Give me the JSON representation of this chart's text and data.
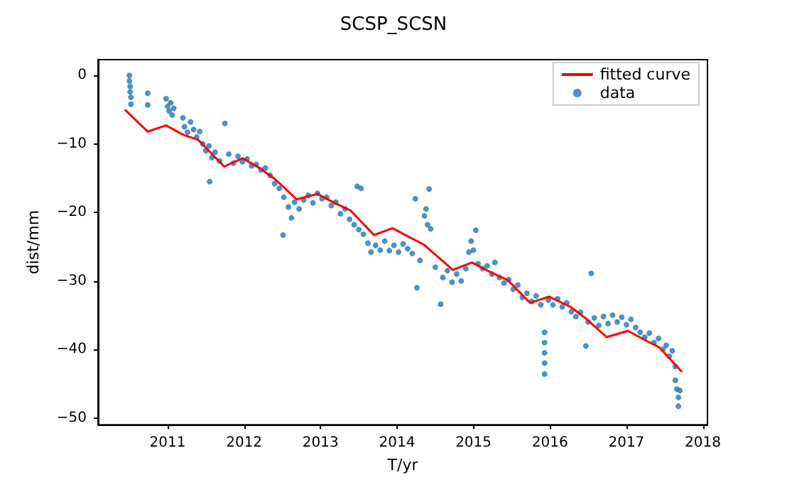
{
  "chart_data": {
    "type": "scatter",
    "title": "SCSP_SCSN",
    "xlabel": "T/yr",
    "ylabel": "dist/mm",
    "xlim": [
      2010.09,
      2018.06
    ],
    "xticks": [
      2011,
      2012,
      2013,
      2014,
      2015,
      2016,
      2017,
      2018
    ],
    "ylim": [
      -51,
      2.3
    ],
    "yticks": [
      -50,
      -40,
      -30,
      -20,
      -10,
      0
    ],
    "grid": false,
    "legend": "top right",
    "series": [
      {
        "name": "fitted curve",
        "type": "line",
        "color": "#ff0000",
        "marker": "none",
        "line_style": "solid",
        "x": [
          2010.45,
          2010.74,
          2010.98,
          2011.21,
          2011.4,
          2011.52,
          2011.74,
          2011.98,
          2012.2,
          2012.41,
          2012.69,
          2012.96,
          2013.18,
          2013.39,
          2013.7,
          2013.94,
          2014.16,
          2014.35,
          2014.73,
          2014.98,
          2015.2,
          2015.45,
          2015.74,
          2015.99,
          2016.27,
          2016.46,
          2016.74,
          2017.02,
          2017.27,
          2017.43,
          2017.72
        ],
        "values": [
          -5.1,
          -8.2,
          -7.3,
          -8.7,
          -9.4,
          -10.8,
          -13.3,
          -12.1,
          -13.5,
          -15.2,
          -18.1,
          -17.3,
          -18.6,
          -19.7,
          -23.3,
          -22.3,
          -23.6,
          -24.7,
          -28.4,
          -27.3,
          -28.6,
          -29.9,
          -33.2,
          -32.3,
          -33.8,
          -35.4,
          -38.2,
          -37.3,
          -38.8,
          -39.7,
          -43.2
        ]
      },
      {
        "name": "data",
        "color": "#1f77b4",
        "marker": "circle",
        "x": [
          2010.5,
          2010.5,
          2010.51,
          2010.51,
          2010.52,
          2010.52,
          2010.74,
          2010.74,
          2010.98,
          2011.0,
          2011.02,
          2011.04,
          2011.06,
          2011.08,
          2011.2,
          2011.22,
          2011.26,
          2011.3,
          2011.34,
          2011.38,
          2011.42,
          2011.46,
          2011.5,
          2011.54,
          2011.55,
          2011.58,
          2011.62,
          2011.68,
          2011.75,
          2011.8,
          2011.86,
          2011.92,
          2011.98,
          2012.04,
          2012.1,
          2012.16,
          2012.22,
          2012.28,
          2012.34,
          2012.4,
          2012.46,
          2012.51,
          2012.52,
          2012.58,
          2012.62,
          2012.66,
          2012.72,
          2012.78,
          2012.84,
          2012.9,
          2012.96,
          2013.02,
          2013.08,
          2013.14,
          2013.2,
          2013.26,
          2013.32,
          2013.38,
          2013.44,
          2013.48,
          2013.53,
          2013.5,
          2013.56,
          2013.62,
          2013.66,
          2013.72,
          2013.78,
          2013.84,
          2013.9,
          2013.96,
          2014.02,
          2014.08,
          2014.14,
          2014.2,
          2014.24,
          2014.26,
          2014.3,
          2014.36,
          2014.38,
          2014.4,
          2014.42,
          2014.44,
          2014.5,
          2014.57,
          2014.6,
          2014.66,
          2014.72,
          2014.78,
          2014.84,
          2014.9,
          2014.94,
          2014.97,
          2015.03,
          2015.0,
          2015.06,
          2015.12,
          2015.18,
          2015.24,
          2015.28,
          2015.34,
          2015.4,
          2015.46,
          2015.52,
          2015.58,
          2015.64,
          2015.7,
          2015.76,
          2015.82,
          2015.88,
          2015.93,
          2015.93,
          2015.93,
          2015.93,
          2015.93,
          2015.98,
          2016.04,
          2016.1,
          2016.16,
          2016.22,
          2016.28,
          2016.34,
          2016.4,
          2016.47,
          2016.5,
          2016.54,
          2016.58,
          2016.64,
          2016.7,
          2016.76,
          2016.82,
          2016.88,
          2016.94,
          2017.0,
          2017.06,
          2017.12,
          2017.18,
          2017.24,
          2017.3,
          2017.36,
          2017.42,
          2017.48,
          2017.52,
          2017.56,
          2017.6,
          2017.64,
          2017.64,
          2017.66,
          2017.68,
          2017.68,
          2017.7
        ],
        "values": [
          0,
          -0.8,
          -1.6,
          -2.4,
          -3.2,
          -4.2,
          -2.6,
          -4.3,
          -3.4,
          -4.5,
          -5.2,
          -4,
          -5.8,
          -4.8,
          -6.2,
          -7.5,
          -8.3,
          -6.8,
          -7.9,
          -9,
          -8.2,
          -10,
          -11,
          -10.3,
          -15.5,
          -12,
          -11.2,
          -12.5,
          -7,
          -11.5,
          -12.8,
          -11.8,
          -12.6,
          -12.2,
          -13.2,
          -13,
          -13.8,
          -13.5,
          -14.6,
          -15.8,
          -16.5,
          -23.3,
          -17.8,
          -19.2,
          -20.8,
          -18.5,
          -19.5,
          -18.2,
          -17.5,
          -18.6,
          -17.2,
          -18,
          -17.8,
          -19,
          -18.5,
          -20.2,
          -19.5,
          -21,
          -21.8,
          -16.2,
          -16.5,
          -22.5,
          -23.2,
          -24.5,
          -25.8,
          -24.8,
          -25.5,
          -24.2,
          -25.6,
          -24.8,
          -25.8,
          -24.6,
          -25.3,
          -26,
          -18,
          -31,
          -27,
          -20.5,
          -19.5,
          -21.8,
          -16.6,
          -22.4,
          -28,
          -33.4,
          -29.5,
          -28.5,
          -30.2,
          -29,
          -30,
          -28.2,
          -25.8,
          -24.2,
          -22.6,
          -25.5,
          -27.5,
          -28.2,
          -27.8,
          -29,
          -27.3,
          -29.5,
          -30.3,
          -29.8,
          -31.2,
          -30.6,
          -32.4,
          -31.8,
          -33,
          -32.2,
          -33.5,
          -37.5,
          -39,
          -40.5,
          -42,
          -43.6,
          -32.8,
          -33.5,
          -32.6,
          -33.8,
          -33.2,
          -34.5,
          -35.2,
          -34.6,
          -39.5,
          -36,
          -28.9,
          -35.4,
          -36.5,
          -35.2,
          -36.2,
          -35,
          -36,
          -35.3,
          -36.4,
          -35.6,
          -36.8,
          -37.5,
          -38.2,
          -37.6,
          -39,
          -38.4,
          -40,
          -39.4,
          -41,
          -40.2,
          -42.5,
          -44.5,
          -45.8,
          -47,
          -48.3,
          -46
        ]
      }
    ]
  }
}
